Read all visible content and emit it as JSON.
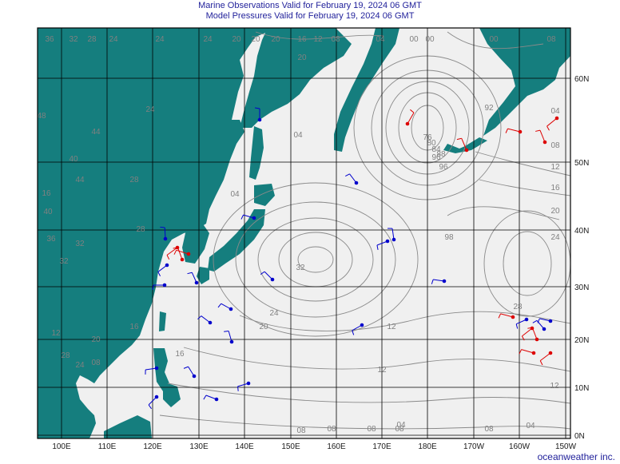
{
  "title_line1": "Marine Observations Valid for February 19, 2024 06 GMT",
  "title_line2": "Model Pressures Valid for February 19, 2024 06 GMT",
  "credit": "oceanweather inc.",
  "colors": {
    "land": "#157e7e",
    "ocean": "#f0f0f0",
    "isobar": "#8a8a8a",
    "obs_ship": "#0000cc",
    "obs_buoy": "#dd0000",
    "grid": "#000000"
  },
  "lon_labels": [
    "100E",
    "110E",
    "120E",
    "130E",
    "140E",
    "150E",
    "160E",
    "170E",
    "180E",
    "170W",
    "160W",
    "150W"
  ],
  "lat_labels": [
    "0N",
    "10N",
    "20N",
    "30N",
    "40N",
    "50N",
    "60N"
  ],
  "isobar_labels": [
    "36",
    "32",
    "28",
    "24",
    "24",
    "24",
    "20",
    "20",
    "20",
    "16",
    "12",
    "08",
    "04",
    "00",
    "00",
    "00",
    "08",
    "92",
    "98",
    "04",
    "20",
    "04",
    "08",
    "12",
    "16",
    "20",
    "24",
    "28",
    "24",
    "20",
    "16",
    "12",
    "12",
    "16",
    "20",
    "24",
    "28",
    "32",
    "04",
    "08",
    "08",
    "08",
    "04",
    "08",
    "08",
    "48",
    "44",
    "40",
    "44",
    "40",
    "36",
    "32",
    "28",
    "32",
    "28",
    "24",
    "16",
    "12",
    "08",
    "96",
    "96",
    "76",
    "80",
    "84",
    "88",
    "04",
    "12"
  ]
}
